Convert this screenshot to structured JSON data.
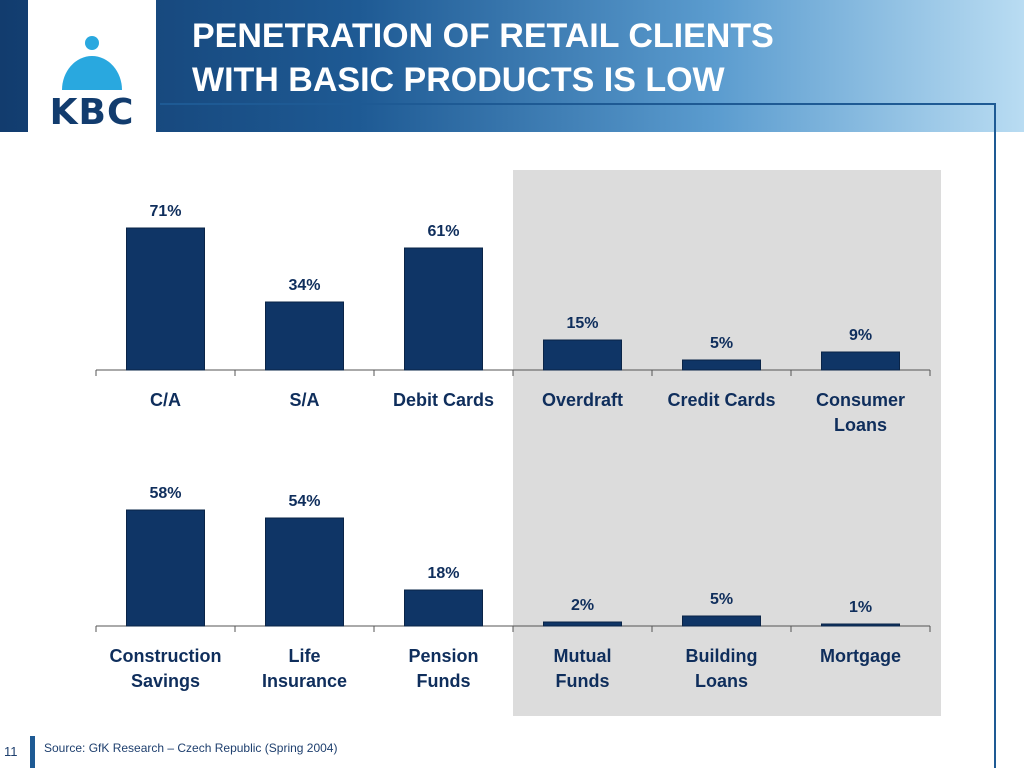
{
  "logo": {
    "text": "KBC"
  },
  "title": {
    "line1": "PENETRATION OF RETAIL CLIENTS",
    "line2": "WITH BASIC PRODUCTS IS LOW"
  },
  "colors": {
    "bar": "#0f3566",
    "label": "#0f2e5c",
    "accent_panel": "#dcdcdc",
    "header_dark": "#123c6e",
    "header_light": "#b9dcf2"
  },
  "chart_data": [
    {
      "type": "bar",
      "categories": [
        [
          "C/A"
        ],
        [
          "S/A"
        ],
        [
          "Debit Cards"
        ],
        [
          "Overdraft"
        ],
        [
          "Credit Cards"
        ],
        [
          "Consumer",
          "Loans"
        ]
      ],
      "values": [
        71,
        34,
        61,
        15,
        5,
        9
      ],
      "data_labels": [
        "71%",
        "34%",
        "61%",
        "15%",
        "5%",
        "9%"
      ],
      "ylim": [
        0,
        75
      ],
      "highlighted_categories": [
        3,
        4,
        5
      ]
    },
    {
      "type": "bar",
      "categories": [
        [
          "Construction",
          "Savings"
        ],
        [
          "Life",
          "Insurance"
        ],
        [
          "Pension",
          "Funds"
        ],
        [
          "Mutual",
          "Funds"
        ],
        [
          "Building",
          "Loans"
        ],
        [
          "Mortgage"
        ]
      ],
      "values": [
        58,
        54,
        18,
        2,
        5,
        1
      ],
      "data_labels": [
        "58%",
        "54%",
        "18%",
        "2%",
        "5%",
        "1%"
      ],
      "ylim": [
        0,
        75
      ],
      "highlighted_categories": [
        3,
        4,
        5
      ]
    }
  ],
  "footer": {
    "page_number": "11",
    "source": "Source: GfK Research – Czech Republic (Spring 2004)"
  }
}
